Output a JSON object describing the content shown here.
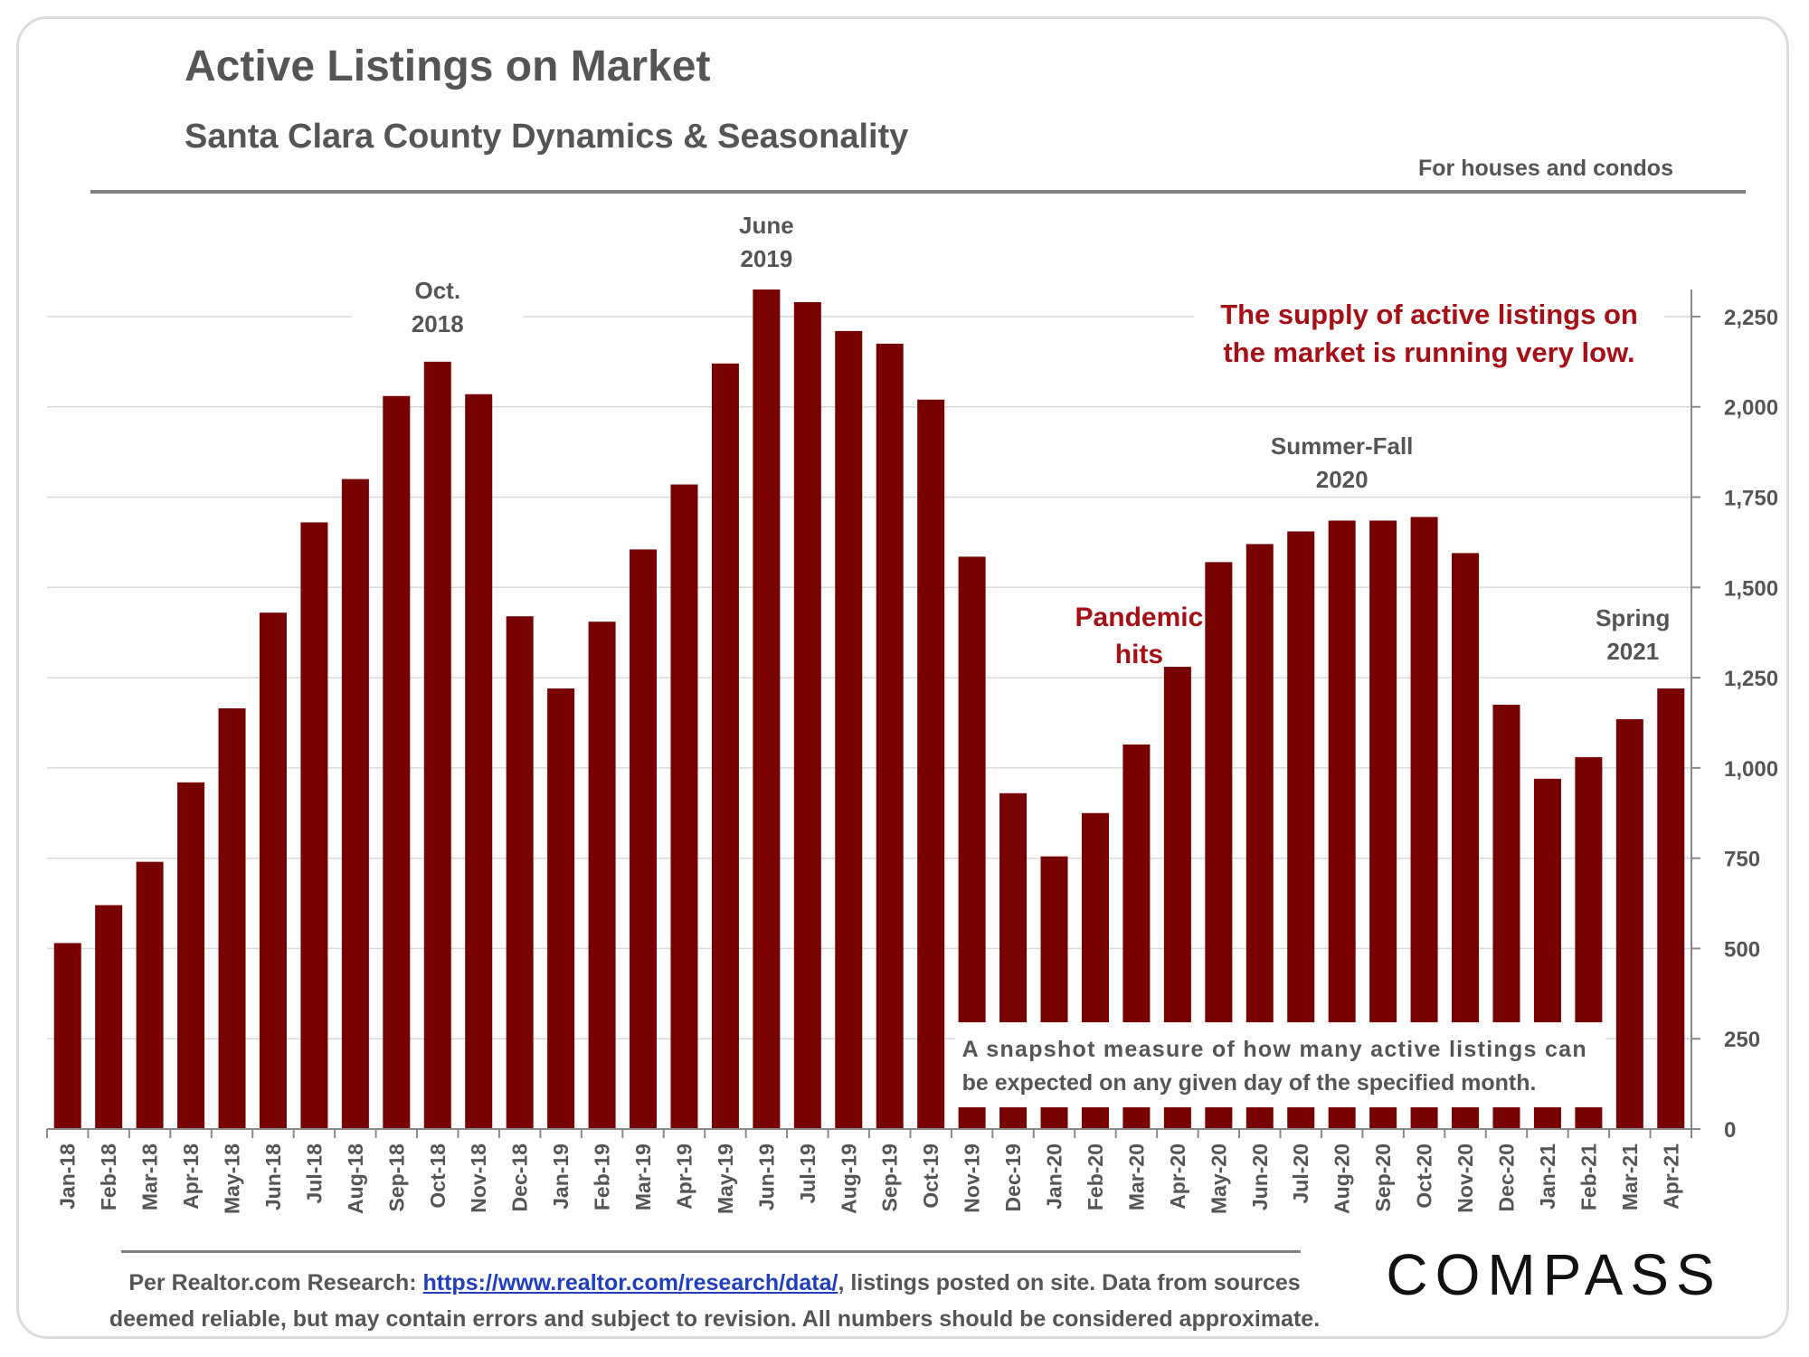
{
  "title": "Active Listings on Market",
  "subtitle": "Santa Clara County Dynamics & Seasonality",
  "scope_note": "For houses and condos",
  "source": {
    "prefix": "Per Realtor.com Research: ",
    "link_text": "https://www.realtor.com/research/data/",
    "suffix": ", listings posted on site. Data from sources",
    "line2": "deemed reliable, but may contain errors and subject to revision. All numbers should be considered approximate."
  },
  "brand": "COMPASS",
  "colors": {
    "bar": "#770000",
    "emphasis_text": "#a50f15",
    "text": "#555555",
    "grid": "#d9d9d9"
  },
  "chart_data": {
    "type": "bar",
    "categories": [
      "Jan-18",
      "Feb-18",
      "Mar-18",
      "Apr-18",
      "May-18",
      "Jun-18",
      "Jul-18",
      "Aug-18",
      "Sep-18",
      "Oct-18",
      "Nov-18",
      "Dec-18",
      "Jan-19",
      "Feb-19",
      "Mar-19",
      "Apr-19",
      "May-19",
      "Jun-19",
      "Jul-19",
      "Aug-19",
      "Sep-19",
      "Oct-19",
      "Nov-19",
      "Dec-19",
      "Jan-20",
      "Feb-20",
      "Mar-20",
      "Apr-20",
      "May-20",
      "Jun-20",
      "Jul-20",
      "Aug-20",
      "Sep-20",
      "Oct-20",
      "Nov-20",
      "Dec-20",
      "Jan-21",
      "Feb-21",
      "Mar-21",
      "Apr-21"
    ],
    "values": [
      515,
      620,
      740,
      960,
      1165,
      1430,
      1680,
      1800,
      2030,
      2125,
      2035,
      1420,
      1220,
      1405,
      1605,
      1785,
      2120,
      2325,
      2290,
      2210,
      2175,
      2020,
      1585,
      930,
      755,
      875,
      1065,
      1280,
      1570,
      1620,
      1655,
      1685,
      1685,
      1695,
      1595,
      1175,
      970,
      1030,
      1135,
      1220
    ],
    "ylim": [
      0,
      2325
    ],
    "yticks": [
      0,
      250,
      500,
      750,
      1000,
      1250,
      1500,
      1750,
      2000,
      2250
    ],
    "ytick_labels": [
      "0",
      "250",
      "500",
      "750",
      "1,000",
      "1,250",
      "1,500",
      "1,750",
      "2,000",
      "2,250"
    ],
    "grid": true,
    "xlabel": "",
    "ylabel": "",
    "annotations": {
      "oct2018": [
        "Oct.",
        "2018"
      ],
      "june2019": [
        "June",
        "2019"
      ],
      "summer_fall_2020": [
        "Summer-Fall",
        "2020"
      ],
      "spring2021": [
        "Spring",
        "2021"
      ],
      "pandemic": [
        "Pandemic",
        "hits"
      ],
      "supply_callout": [
        "The supply of active listings on",
        "the market is running very low."
      ],
      "snapshot_note": [
        "A snapshot measure of how many active listings can",
        "be expected on any given day of the specified month."
      ]
    }
  }
}
